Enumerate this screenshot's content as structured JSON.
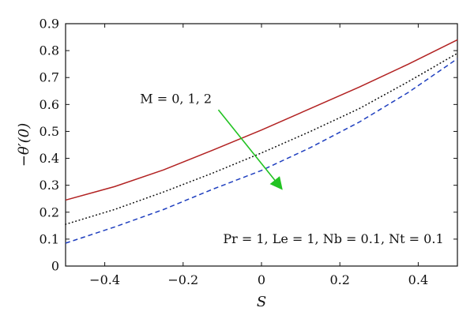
{
  "chart_data": {
    "type": "line",
    "title": "",
    "xlabel": "S",
    "ylabel": "−θ′(0)",
    "xlim": [
      -0.5,
      0.5
    ],
    "ylim": [
      0,
      0.9
    ],
    "grid": false,
    "x_ticks": [
      -0.4,
      -0.2,
      0,
      0.2,
      0.4
    ],
    "x_tick_labels": [
      "−0.4",
      "−0.2",
      "0",
      "0.2",
      "0.4"
    ],
    "y_ticks": [
      0,
      0.1,
      0.2,
      0.3,
      0.4,
      0.5,
      0.6,
      0.7,
      0.8,
      0.9
    ],
    "y_tick_labels": [
      "0",
      "0.1",
      "0.2",
      "0.3",
      "0.4",
      "0.5",
      "0.6",
      "0.7",
      "0.8",
      "0.9"
    ],
    "series": [
      {
        "x": [
          -0.5,
          -0.375,
          -0.25,
          -0.125,
          0,
          0.125,
          0.25,
          0.375,
          0.5
        ],
        "values": [
          0.245,
          0.295,
          0.357,
          0.43,
          0.505,
          0.585,
          0.665,
          0.75,
          0.84
        ],
        "color": "#b22222",
        "dash": "solid"
      },
      {
        "x": [
          -0.5,
          -0.375,
          -0.25,
          -0.125,
          0,
          0.125,
          0.25,
          0.375,
          0.5
        ],
        "values": [
          0.155,
          0.21,
          0.275,
          0.345,
          0.42,
          0.5,
          0.585,
          0.685,
          0.79
        ],
        "color": "#111111",
        "dash": "dotted"
      },
      {
        "x": [
          -0.5,
          -0.375,
          -0.25,
          -0.125,
          0,
          0.125,
          0.25,
          0.375,
          0.5
        ],
        "values": [
          0.085,
          0.145,
          0.21,
          0.285,
          0.355,
          0.44,
          0.535,
          0.645,
          0.77
        ],
        "color": "#1f3fbf",
        "dash": "dashed"
      }
    ],
    "annotations": {
      "arrow_label": "M = 0, 1, 2",
      "arrow_color": "#22c322",
      "arrow_from": [
        -0.11,
        0.58
      ],
      "arrow_to": [
        0.05,
        0.29
      ],
      "arrow_label_anchor": [
        -0.31,
        0.605
      ],
      "params_text": "Pr = 1, Le = 1, Nb = 0.1, Nt = 0.1",
      "params_anchor": [
        0.465,
        0.085
      ]
    }
  }
}
